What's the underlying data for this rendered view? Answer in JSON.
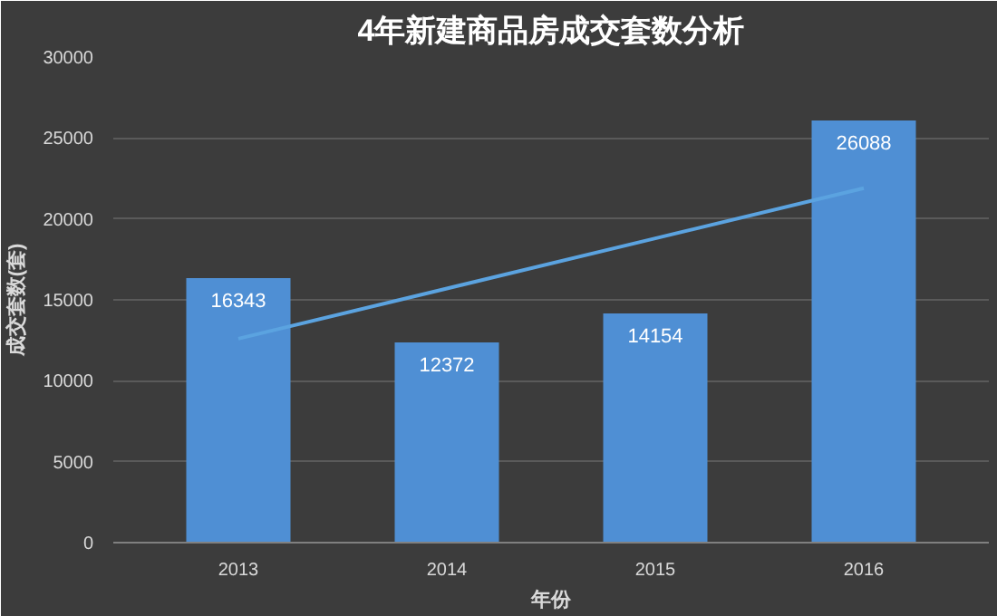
{
  "chart_data": {
    "type": "bar",
    "title": "4年新建商品房成交套数分析",
    "xlabel": "年份",
    "ylabel": "成交套数(套)",
    "categories": [
      "2013",
      "2014",
      "2015",
      "2016"
    ],
    "series": [
      {
        "color": "#4f8fd4",
        "values": [
          16343,
          12372,
          14154,
          26088
        ],
        "value_labels": [
          "16343",
          "12372",
          "14154",
          "26088"
        ]
      },
      {
        "type": "line",
        "color": "#5ba3e0",
        "values": [
          12600,
          15700,
          18800,
          21900
        ]
      }
    ],
    "ylim": [
      0,
      30000
    ],
    "yticks": [
      0,
      5000,
      10000,
      15000,
      20000,
      25000,
      30000
    ],
    "grid": "y"
  }
}
